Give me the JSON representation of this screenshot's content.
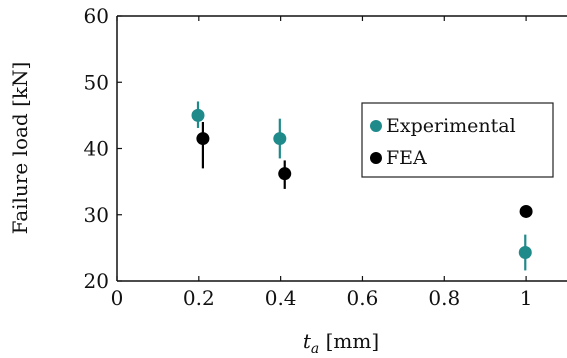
{
  "chart_data": {
    "type": "scatter",
    "title": "",
    "xlabel_var": "t",
    "xlabel_sub": "a",
    "xlabel_unit": " [mm]",
    "ylabel": "Failure load [kN]",
    "xlim": [
      0,
      1.1
    ],
    "ylim": [
      20,
      60
    ],
    "xticks": [
      0,
      0.2,
      0.4,
      0.6,
      0.8,
      1
    ],
    "xtick_labels": [
      "0",
      "0.2",
      "0.4",
      "0.6",
      "0.8",
      "1"
    ],
    "yticks": [
      20,
      30,
      40,
      50,
      60
    ],
    "ytick_labels": [
      "20",
      "30",
      "40",
      "50",
      "60"
    ],
    "grid": false,
    "legend_position": "middle-right",
    "series": [
      {
        "name": "Experimental",
        "color": "#1f8a8a",
        "points": [
          {
            "x": 0.198,
            "y": 45.0,
            "ylow": 43.1,
            "yhigh": 47.1
          },
          {
            "x": 0.398,
            "y": 41.5,
            "ylow": 38.5,
            "yhigh": 44.5
          },
          {
            "x": 0.998,
            "y": 24.3,
            "ylow": 21.6,
            "yhigh": 27.0
          }
        ]
      },
      {
        "name": "FEA",
        "color": "#000000",
        "points": [
          {
            "x": 0.21,
            "y": 41.5,
            "ylow": 37.0,
            "yhigh": 44.0
          },
          {
            "x": 0.41,
            "y": 36.2,
            "ylow": 33.9,
            "yhigh": 38.2
          },
          {
            "x": 1.0,
            "y": 30.5,
            "ylow": 30.0,
            "yhigh": 31.0
          }
        ]
      }
    ]
  }
}
